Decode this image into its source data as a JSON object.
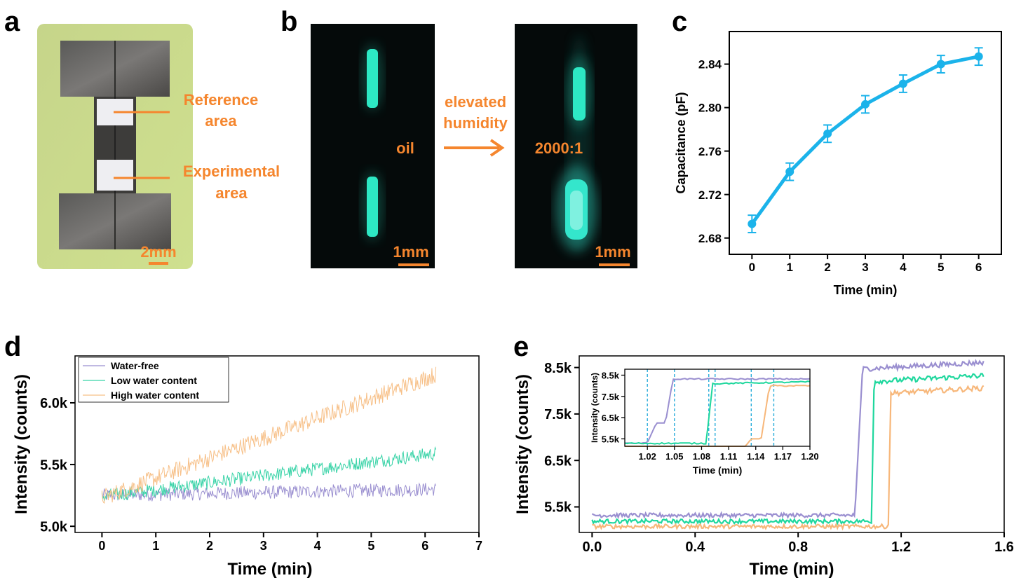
{
  "panels": {
    "a": {
      "label": "a",
      "reference_label_line1": "Reference",
      "reference_label_line2": "area",
      "experimental_label_line1": "Experimental",
      "experimental_label_line2": "area",
      "scale_bar": "2mm",
      "colors": {
        "background": "#c9d98a",
        "electrode": "#4a4a48",
        "pad": "#eeeef2",
        "annotation": "#f5862e"
      }
    },
    "b": {
      "label": "b",
      "left_caption": "oil",
      "arrow_label_line1": "elevated",
      "arrow_label_line2": "humidity",
      "right_caption": "2000:1",
      "scale_bar_left": "1mm",
      "scale_bar_right": "1mm",
      "colors": {
        "glow": "#2de8c4",
        "image_bg": "#050a0a",
        "annotation": "#f5862e"
      }
    },
    "c": {
      "label": "c"
    },
    "d": {
      "label": "d"
    },
    "e": {
      "label": "e"
    }
  },
  "chart_data": [
    {
      "id": "c",
      "type": "line",
      "xlabel": "Time (min)",
      "ylabel": "Capacitance (pF)",
      "x": [
        0,
        1,
        2,
        3,
        4,
        5,
        6
      ],
      "series": [
        {
          "values": [
            2.693,
            2.741,
            2.776,
            2.803,
            2.822,
            2.84,
            2.847
          ],
          "errors": [
            0.008,
            0.008,
            0.008,
            0.008,
            0.008,
            0.008,
            0.008
          ],
          "color": "#1bb3ea"
        }
      ],
      "xlim": [
        -0.6,
        6.6
      ],
      "ylim": [
        2.665,
        2.87
      ],
      "xticks": [
        "0",
        "1",
        "2",
        "3",
        "4",
        "5",
        "6"
      ],
      "yticks": [
        "2.68",
        "2.72",
        "2.76",
        "2.80",
        "2.84"
      ],
      "ytick_values": [
        2.68,
        2.72,
        2.76,
        2.8,
        2.84
      ]
    },
    {
      "id": "d",
      "type": "line",
      "xlabel": "Time (min)",
      "ylabel": "Intensity (counts)",
      "legend_position": "top-left",
      "xlim": [
        -0.5,
        7
      ],
      "ylim": [
        4950,
        6380
      ],
      "xticks": [
        "0",
        "1",
        "2",
        "3",
        "4",
        "5",
        "6",
        "7"
      ],
      "xtick_values": [
        0,
        1,
        2,
        3,
        4,
        5,
        6,
        7
      ],
      "yticks": [
        "5.0k",
        "5.5k",
        "6.0k"
      ],
      "ytick_values": [
        5000,
        5500,
        6000
      ],
      "series": [
        {
          "name": "Water-free",
          "color": "#9a8fd0",
          "start": [
            0,
            5250
          ],
          "end": [
            6.2,
            5300
          ],
          "noise": 55
        },
        {
          "name": "Low water content",
          "color": "#38d3a7",
          "start": [
            0,
            5240
          ],
          "end": [
            6.2,
            5590
          ],
          "noise": 55
        },
        {
          "name": "High water content",
          "color": "#f7c088",
          "start": [
            0,
            5230
          ],
          "end": [
            6.2,
            6230
          ],
          "noise": 70
        }
      ]
    },
    {
      "id": "e",
      "type": "line",
      "xlabel": "Time (min)",
      "ylabel": "Intensity (counts)",
      "xlim": [
        -0.05,
        1.6
      ],
      "ylim": [
        4950,
        8750
      ],
      "xticks": [
        "0.0",
        "0.4",
        "0.8",
        "1.2",
        "1.6"
      ],
      "xtick_values": [
        0.0,
        0.4,
        0.8,
        1.2,
        1.6
      ],
      "yticks": [
        "5.5k",
        "6.5k",
        "7.5k",
        "8.5k"
      ],
      "ytick_values": [
        5500,
        6500,
        7500,
        8500
      ],
      "series": [
        {
          "color": "#9a8fd0",
          "low": 5320,
          "high": 8470,
          "step_start": 1.02,
          "step_end": 1.05
        },
        {
          "color": "#1ed79d",
          "low": 5190,
          "high": 8200,
          "step_start": 1.085,
          "step_end": 1.095
        },
        {
          "color": "#f7b77a",
          "low": 5080,
          "high": 7950,
          "step_start": 1.15,
          "step_end": 1.16
        }
      ],
      "inset": {
        "xlabel": "Time (min)",
        "ylabel": "Intensity (counts)",
        "xlim": [
          0.995,
          1.2
        ],
        "ylim": [
          5150,
          8780
        ],
        "xticks": [
          "1.02",
          "1.05",
          "1.08",
          "1.11",
          "1.14",
          "1.17",
          "1.20"
        ],
        "xtick_values": [
          1.02,
          1.05,
          1.08,
          1.11,
          1.14,
          1.17,
          1.2
        ],
        "yticks": [
          "5.5k",
          "6.5k",
          "7.5k",
          "8.5k"
        ],
        "ytick_values": [
          5500,
          6500,
          7500,
          8500
        ],
        "markers": [
          1.02,
          1.05,
          1.088,
          1.095,
          1.135,
          1.16
        ]
      }
    }
  ]
}
